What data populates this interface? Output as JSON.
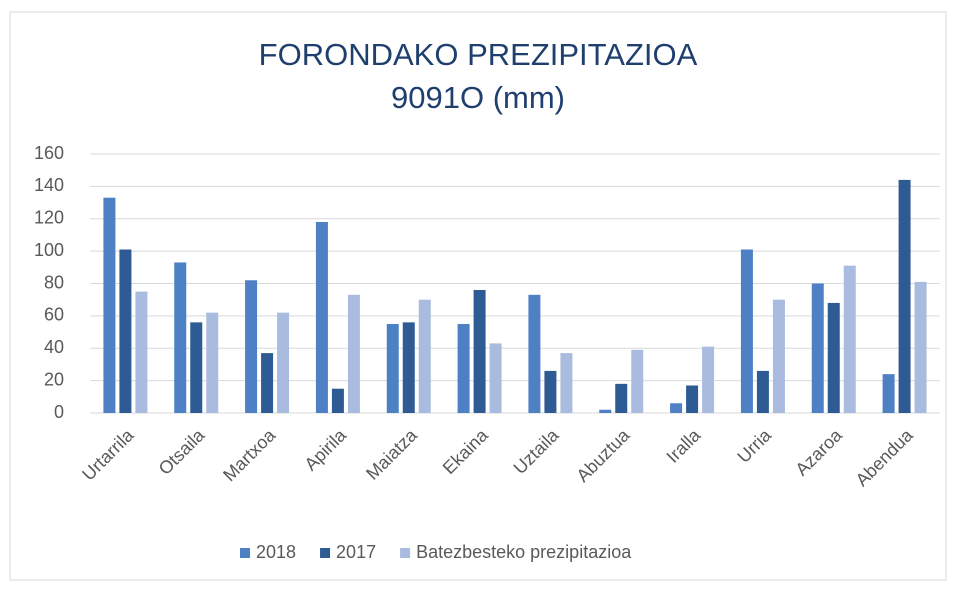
{
  "chart_data": {
    "type": "bar",
    "title": [
      "FORONDAKO PREZIPITAZIOA",
      "9091O (mm)"
    ],
    "categories": [
      "Urtarrila",
      "Otsaila",
      "Martxoa",
      "Apirila",
      "Maiatza",
      "Ekaina",
      "Uztaila",
      "Abuztua",
      "Iralla",
      "Urria",
      "Azaroa",
      "Abendua"
    ],
    "series": [
      {
        "name": "2018",
        "color": "#4d80c4",
        "values": [
          133,
          93,
          82,
          118,
          55,
          55,
          73,
          2,
          6,
          101,
          80,
          24
        ]
      },
      {
        "name": "2017",
        "color": "#2f5b94",
        "values": [
          101,
          56,
          37,
          15,
          56,
          76,
          26,
          18,
          17,
          26,
          68,
          144
        ]
      },
      {
        "name": "Batezbesteko prezipitazioa",
        "color": "#a9bbde",
        "values": [
          75,
          62,
          62,
          73,
          70,
          43,
          37,
          39,
          41,
          70,
          91,
          81
        ]
      }
    ],
    "ylim": [
      0,
      160
    ],
    "yticks": [
      0,
      20,
      40,
      60,
      80,
      100,
      120,
      140,
      160
    ],
    "grid": true,
    "legend": "bottom"
  }
}
